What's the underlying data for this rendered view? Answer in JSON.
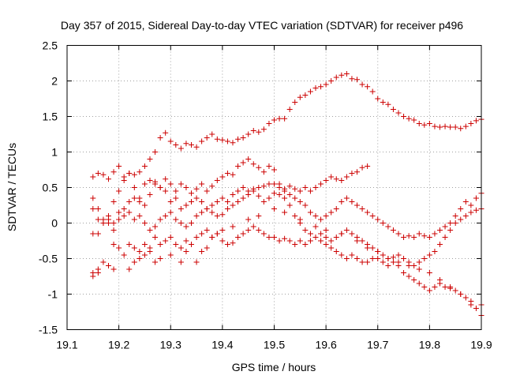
{
  "chart_data": {
    "type": "scatter",
    "title": "Day 357 of 2015, Sidereal Day-to-day VTEC variation (SDTVAR) for receiver p496",
    "xlabel": "GPS time / hours",
    "ylabel": "SDTVAR / TECUs",
    "xlim": [
      19.1,
      19.9
    ],
    "ylim": [
      -1.5,
      2.5
    ],
    "grid": true,
    "marker": "+",
    "color": "#cc0000",
    "xticks": [
      19.1,
      19.2,
      19.3,
      19.4,
      19.5,
      19.6,
      19.7,
      19.8,
      19.9
    ],
    "xtick_labels": [
      "19.1",
      "19.2",
      "19.3",
      "19.4",
      "19.5",
      "19.6",
      "19.7",
      "19.8",
      "19.9"
    ],
    "yticks": [
      2.5,
      2,
      1.5,
      1,
      0.5,
      0,
      -0.5,
      -1,
      -1.5
    ],
    "ytick_labels": [
      "2.5",
      "2",
      "1.5",
      "1",
      "0.5",
      "0",
      "-0.5",
      "-1",
      "-1.5"
    ],
    "series": [
      {
        "name": "s1",
        "x": [
          19.15,
          19.16,
          19.17,
          19.18,
          19.19,
          19.2,
          19.21,
          19.22,
          19.23,
          19.24,
          19.25,
          19.26,
          19.27,
          19.28,
          19.29,
          19.3,
          19.31,
          19.32,
          19.33,
          19.34,
          19.35,
          19.36,
          19.37,
          19.38,
          19.39,
          19.4,
          19.41,
          19.42,
          19.43,
          19.44,
          19.45,
          19.46,
          19.47,
          19.48,
          19.49,
          19.5,
          19.51,
          19.52,
          19.53,
          19.54,
          19.55,
          19.56,
          19.57,
          19.58,
          19.59,
          19.6,
          19.61,
          19.62,
          19.63,
          19.64,
          19.65,
          19.66,
          19.67,
          19.68,
          19.69,
          19.7,
          19.71,
          19.72,
          19.73,
          19.74,
          19.75,
          19.76,
          19.77,
          19.78,
          19.79,
          19.8,
          19.81,
          19.82,
          19.83,
          19.84,
          19.85,
          19.86,
          19.87,
          19.88,
          19.89,
          19.9
        ],
        "y": [
          0.65,
          0.7,
          0.68,
          0.62,
          0.72,
          0.8,
          0.6,
          0.7,
          0.68,
          0.72,
          0.8,
          0.9,
          1.0,
          1.2,
          1.27,
          1.15,
          1.1,
          1.05,
          1.12,
          1.1,
          1.07,
          1.15,
          1.2,
          1.25,
          1.18,
          1.17,
          1.15,
          1.13,
          1.18,
          1.2,
          1.25,
          1.3,
          1.28,
          1.32,
          1.4,
          1.45,
          1.47,
          1.47,
          1.6,
          1.7,
          1.77,
          1.8,
          1.85,
          1.9,
          1.92,
          1.95,
          2.0,
          2.05,
          2.08,
          2.1,
          2.03,
          2.02,
          1.95,
          1.92,
          1.85,
          1.75,
          1.7,
          1.67,
          1.6,
          1.55,
          1.5,
          1.47,
          1.45,
          1.4,
          1.38,
          1.4,
          1.36,
          1.35,
          1.36,
          1.35,
          1.35,
          1.33,
          1.36,
          1.4,
          1.44,
          1.46
        ]
      },
      {
        "name": "s2",
        "x": [
          19.15,
          19.16,
          19.17,
          19.18,
          19.19,
          19.2,
          19.21,
          19.22,
          19.23,
          19.24,
          19.25,
          19.26,
          19.27,
          19.28,
          19.29,
          19.3,
          19.31,
          19.32,
          19.33,
          19.34,
          19.35,
          19.36,
          19.37,
          19.38,
          19.39,
          19.4,
          19.41,
          19.42,
          19.43,
          19.44,
          19.45,
          19.46,
          19.47,
          19.48,
          19.49,
          19.5,
          19.51,
          19.52,
          19.53,
          19.54,
          19.55,
          19.56,
          19.57,
          19.58,
          19.59,
          19.6,
          19.61,
          19.62,
          19.63,
          19.64,
          19.65,
          19.66,
          19.67,
          19.68
        ],
        "y": [
          0.2,
          0.05,
          0.0,
          0.1,
          0.3,
          0.45,
          0.65,
          0.7,
          0.5,
          0.35,
          0.55,
          0.6,
          0.58,
          0.5,
          0.62,
          0.55,
          0.45,
          0.55,
          0.5,
          0.42,
          0.48,
          0.55,
          0.45,
          0.52,
          0.6,
          0.65,
          0.7,
          0.68,
          0.8,
          0.85,
          0.9,
          0.83,
          0.78,
          0.72,
          0.8,
          0.75,
          0.55,
          0.45,
          0.52,
          0.48,
          0.45,
          0.5,
          0.45,
          0.5,
          0.55,
          0.6,
          0.65,
          0.62,
          0.6,
          0.65,
          0.7,
          0.72,
          0.78,
          0.8
        ]
      },
      {
        "name": "s3",
        "x": [
          19.15,
          19.16,
          19.17,
          19.18,
          19.19,
          19.2,
          19.21,
          19.22,
          19.23,
          19.24,
          19.25,
          19.26,
          19.27,
          19.28,
          19.29,
          19.3,
          19.31,
          19.32,
          19.33,
          19.34,
          19.35,
          19.36,
          19.37,
          19.38,
          19.39,
          19.4,
          19.41,
          19.42,
          19.43,
          19.44,
          19.45,
          19.46,
          19.47,
          19.48,
          19.49,
          19.5,
          19.51,
          19.52,
          19.53,
          19.54,
          19.55,
          19.56,
          19.57,
          19.58,
          19.59,
          19.6,
          19.61,
          19.62,
          19.63,
          19.64,
          19.65,
          19.66,
          19.67,
          19.68,
          19.69,
          19.7,
          19.71,
          19.72,
          19.73,
          19.74,
          19.75,
          19.76,
          19.77,
          19.78,
          19.79,
          19.8,
          19.81,
          19.82,
          19.83,
          19.84,
          19.85,
          19.86,
          19.87,
          19.88,
          19.89,
          19.9
        ],
        "y": [
          0.35,
          0.2,
          0.05,
          0.0,
          -0.1,
          0.15,
          0.2,
          0.3,
          0.35,
          0.3,
          0.25,
          0.4,
          0.55,
          0.5,
          0.45,
          0.3,
          0.35,
          0.2,
          0.25,
          0.3,
          0.35,
          0.3,
          0.2,
          0.25,
          0.3,
          0.35,
          0.3,
          0.4,
          0.45,
          0.5,
          0.45,
          0.48,
          0.5,
          0.52,
          0.55,
          0.55,
          0.5,
          0.48,
          0.4,
          0.35,
          0.3,
          0.25,
          0.15,
          0.1,
          0.05,
          0.1,
          0.15,
          0.2,
          0.3,
          0.35,
          0.3,
          0.25,
          0.2,
          0.15,
          0.1,
          0.05,
          0.0,
          -0.05,
          -0.1,
          -0.15,
          -0.2,
          -0.18,
          -0.2,
          -0.15,
          -0.18,
          -0.2,
          -0.15,
          -0.1,
          -0.05,
          0.0,
          0.1,
          0.2,
          0.3,
          0.25,
          0.35,
          0.42
        ]
      },
      {
        "name": "s4",
        "x": [
          19.15,
          19.16,
          19.17,
          19.18,
          19.19,
          19.2,
          19.21,
          19.22,
          19.23,
          19.24,
          19.25,
          19.26,
          19.27,
          19.28,
          19.29,
          19.3,
          19.31,
          19.32,
          19.33,
          19.34,
          19.35,
          19.36,
          19.37,
          19.38,
          19.39,
          19.4,
          19.41,
          19.42,
          19.43,
          19.44,
          19.45,
          19.46,
          19.47,
          19.48,
          19.49,
          19.5,
          19.51,
          19.52,
          19.53,
          19.54,
          19.55,
          19.56,
          19.57,
          19.58,
          19.59,
          19.6,
          19.61,
          19.62,
          19.63,
          19.64,
          19.65,
          19.66,
          19.67,
          19.68,
          19.69,
          19.7,
          19.71,
          19.72,
          19.73,
          19.74,
          19.75,
          19.76,
          19.77,
          19.78,
          19.79,
          19.8,
          19.81,
          19.82,
          19.83,
          19.84,
          19.85,
          19.86,
          19.87,
          19.88,
          19.89,
          19.9
        ],
        "y": [
          -0.15,
          -0.15,
          0.0,
          0.05,
          0.0,
          0.05,
          0.1,
          0.15,
          0.05,
          0.1,
          0.0,
          -0.1,
          -0.05,
          0.05,
          0.1,
          0.15,
          0.05,
          0.0,
          -0.05,
          0.0,
          0.1,
          0.15,
          0.2,
          0.15,
          0.1,
          0.12,
          0.2,
          0.25,
          0.3,
          0.35,
          0.4,
          0.45,
          0.38,
          0.3,
          0.35,
          0.42,
          0.4,
          0.35,
          0.25,
          0.1,
          0.0,
          -0.1,
          -0.15,
          -0.2,
          -0.15,
          -0.2,
          -0.25,
          -0.2,
          -0.15,
          -0.1,
          -0.15,
          -0.2,
          -0.25,
          -0.3,
          -0.35,
          -0.4,
          -0.45,
          -0.5,
          -0.48,
          -0.45,
          -0.5,
          -0.55,
          -0.6,
          -0.55,
          -0.5,
          -0.45,
          -0.4,
          -0.3,
          -0.2,
          -0.1,
          0.0,
          0.05,
          0.1,
          0.15,
          0.18,
          0.2
        ]
      },
      {
        "name": "s5",
        "x": [
          19.15,
          19.16,
          19.17,
          19.18,
          19.19,
          19.2,
          19.21,
          19.22,
          19.23,
          19.24,
          19.25,
          19.26,
          19.27,
          19.28,
          19.29,
          19.3,
          19.31,
          19.32,
          19.33,
          19.34,
          19.35,
          19.36,
          19.37,
          19.38,
          19.39,
          19.4,
          19.41,
          19.42,
          19.43,
          19.44,
          19.45,
          19.46,
          19.47,
          19.48,
          19.49,
          19.5,
          19.51,
          19.52,
          19.53,
          19.54,
          19.55,
          19.56,
          19.57,
          19.58,
          19.59,
          19.6,
          19.61,
          19.62,
          19.63,
          19.64,
          19.65,
          19.66,
          19.67,
          19.68,
          19.69,
          19.7,
          19.71,
          19.72,
          19.73,
          19.74,
          19.75,
          19.76,
          19.77,
          19.78,
          19.79,
          19.8,
          19.81,
          19.82,
          19.83,
          19.84,
          19.85,
          19.86,
          19.87,
          19.88,
          19.89,
          19.9
        ],
        "y": [
          -0.7,
          -0.65,
          -0.55,
          -0.6,
          -0.65,
          -0.35,
          -0.45,
          -0.3,
          -0.35,
          -0.4,
          -0.3,
          -0.35,
          -0.2,
          -0.3,
          -0.25,
          -0.2,
          -0.3,
          -0.35,
          -0.25,
          -0.3,
          -0.2,
          -0.15,
          -0.1,
          -0.2,
          -0.15,
          -0.25,
          -0.3,
          -0.28,
          -0.2,
          -0.15,
          -0.1,
          -0.05,
          -0.1,
          -0.15,
          -0.2,
          -0.2,
          -0.25,
          -0.22,
          -0.25,
          -0.3,
          -0.25,
          -0.3,
          -0.25,
          -0.2,
          -0.25,
          -0.3,
          -0.35,
          -0.4,
          -0.45,
          -0.5,
          -0.45,
          -0.5,
          -0.55,
          -0.55,
          -0.5,
          -0.5,
          -0.55,
          -0.6,
          -0.55,
          -0.6,
          -0.7,
          -0.75,
          -0.8,
          -0.85,
          -0.9,
          -0.95,
          -0.9,
          -0.85,
          -0.9,
          -0.92,
          -0.95,
          -1.0,
          -1.05,
          -1.1,
          -1.2,
          -1.3
        ]
      },
      {
        "name": "s6",
        "x": [
          19.15,
          19.16,
          19.19,
          19.22,
          19.23,
          19.24,
          19.25,
          19.26,
          19.27,
          19.28,
          19.3,
          19.32,
          19.33,
          19.35,
          19.36,
          19.37,
          19.38,
          19.39,
          19.4,
          19.42,
          19.45,
          19.47,
          19.5,
          19.52,
          19.55,
          19.58,
          19.6,
          19.63,
          19.66,
          19.68,
          19.7,
          19.72,
          19.74,
          19.76,
          19.78,
          19.8,
          19.82,
          19.84,
          19.86,
          19.88,
          19.9
        ],
        "y": [
          -0.75,
          -0.7,
          -0.3,
          -0.65,
          -0.55,
          -0.5,
          -0.45,
          -0.4,
          -0.55,
          -0.5,
          -0.45,
          -0.55,
          -0.4,
          -0.55,
          -0.4,
          -0.35,
          -0.2,
          -0.15,
          -0.1,
          -0.05,
          0.05,
          0.1,
          0.2,
          0.15,
          0.05,
          -0.05,
          -0.1,
          -0.15,
          -0.25,
          -0.35,
          -0.4,
          -0.5,
          -0.55,
          -0.6,
          -0.65,
          -0.7,
          -0.8,
          -0.9,
          -1.0,
          -1.15,
          -1.15
        ]
      }
    ]
  }
}
